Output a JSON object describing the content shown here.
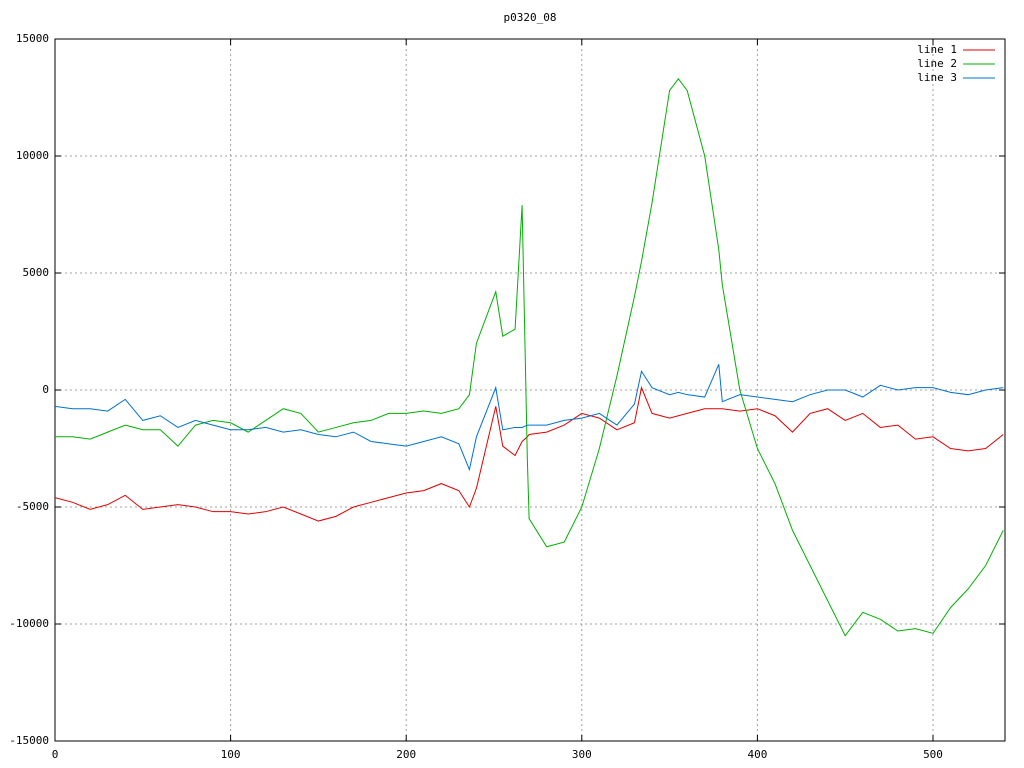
{
  "chart_data": {
    "type": "line",
    "title": "p0320_08",
    "x": [
      0,
      10,
      20,
      30,
      40,
      50,
      60,
      70,
      80,
      90,
      100,
      110,
      120,
      130,
      140,
      150,
      160,
      170,
      180,
      190,
      200,
      210,
      220,
      230,
      236,
      240,
      251,
      255,
      262,
      266,
      269,
      270,
      280,
      290,
      300,
      310,
      320,
      330,
      334,
      340,
      350,
      355,
      360,
      370,
      378,
      380,
      390,
      400,
      410,
      420,
      430,
      440,
      450,
      460,
      470,
      480,
      490,
      500,
      510,
      520,
      530,
      540
    ],
    "series": [
      {
        "name": "line 1",
        "color": "#e00000",
        "values": [
          -4600,
          -4800,
          -5100,
          -4900,
          -4500,
          -5100,
          -5000,
          -4900,
          -5000,
          -5200,
          -5200,
          -5300,
          -5200,
          -5000,
          -5300,
          -5600,
          -5400,
          -5000,
          -4800,
          -4600,
          -4400,
          -4300,
          -4000,
          -4300,
          -5000,
          -4200,
          -700,
          -2400,
          -2800,
          -2200,
          -2000,
          -1900,
          -1800,
          -1500,
          -1000,
          -1200,
          -1700,
          -1400,
          100,
          -1000,
          -1200,
          -1100,
          -1000,
          -800,
          -800,
          -800,
          -900,
          -800,
          -1100,
          -1800,
          -1000,
          -800,
          -1300,
          -1000,
          -1600,
          -1500,
          -2100,
          -2000,
          -2500,
          -2600,
          -2500,
          -1900
        ]
      },
      {
        "name": "line 2",
        "color": "#00b000",
        "values": [
          -2000,
          -2000,
          -2100,
          -1800,
          -1500,
          -1700,
          -1700,
          -2400,
          -1500,
          -1300,
          -1400,
          -1800,
          -1300,
          -800,
          -1000,
          -1800,
          -1600,
          -1400,
          -1300,
          -1000,
          -1000,
          -900,
          -1000,
          -800,
          -200,
          2000,
          4200,
          2300,
          2600,
          7900,
          -3000,
          -5500,
          -6700,
          -6500,
          -5000,
          -2500,
          600,
          4000,
          5500,
          8000,
          12800,
          13300,
          12800,
          10000,
          6000,
          4500,
          0,
          -2500,
          -4000,
          -6000,
          -7500,
          -9000,
          -10500,
          -9500,
          -9800,
          -10300,
          -10200,
          -10400,
          -9300,
          -8500,
          -7500,
          -6000
        ]
      },
      {
        "name": "line 3",
        "color": "#0070d0",
        "values": [
          -700,
          -800,
          -800,
          -900,
          -400,
          -1300,
          -1100,
          -1600,
          -1300,
          -1500,
          -1700,
          -1700,
          -1600,
          -1800,
          -1700,
          -1900,
          -2000,
          -1800,
          -2200,
          -2300,
          -2400,
          -2200,
          -2000,
          -2300,
          -3400,
          -2000,
          100,
          -1700,
          -1600,
          -1600,
          -1500,
          -1500,
          -1500,
          -1300,
          -1200,
          -1000,
          -1500,
          -600,
          800,
          100,
          -200,
          -100,
          -200,
          -300,
          1100,
          -500,
          -200,
          -300,
          -400,
          -500,
          -200,
          0,
          0,
          -300,
          200,
          0,
          100,
          100,
          -100,
          -200,
          0,
          100
        ]
      }
    ],
    "xlim": [
      0,
      541
    ],
    "ylim": [
      -15000,
      15000
    ],
    "xticks": [
      0,
      100,
      200,
      300,
      400,
      500
    ],
    "yticks": [
      -15000,
      -10000,
      -5000,
      0,
      5000,
      10000,
      15000
    ],
    "grid": true,
    "legend": "top-right"
  }
}
